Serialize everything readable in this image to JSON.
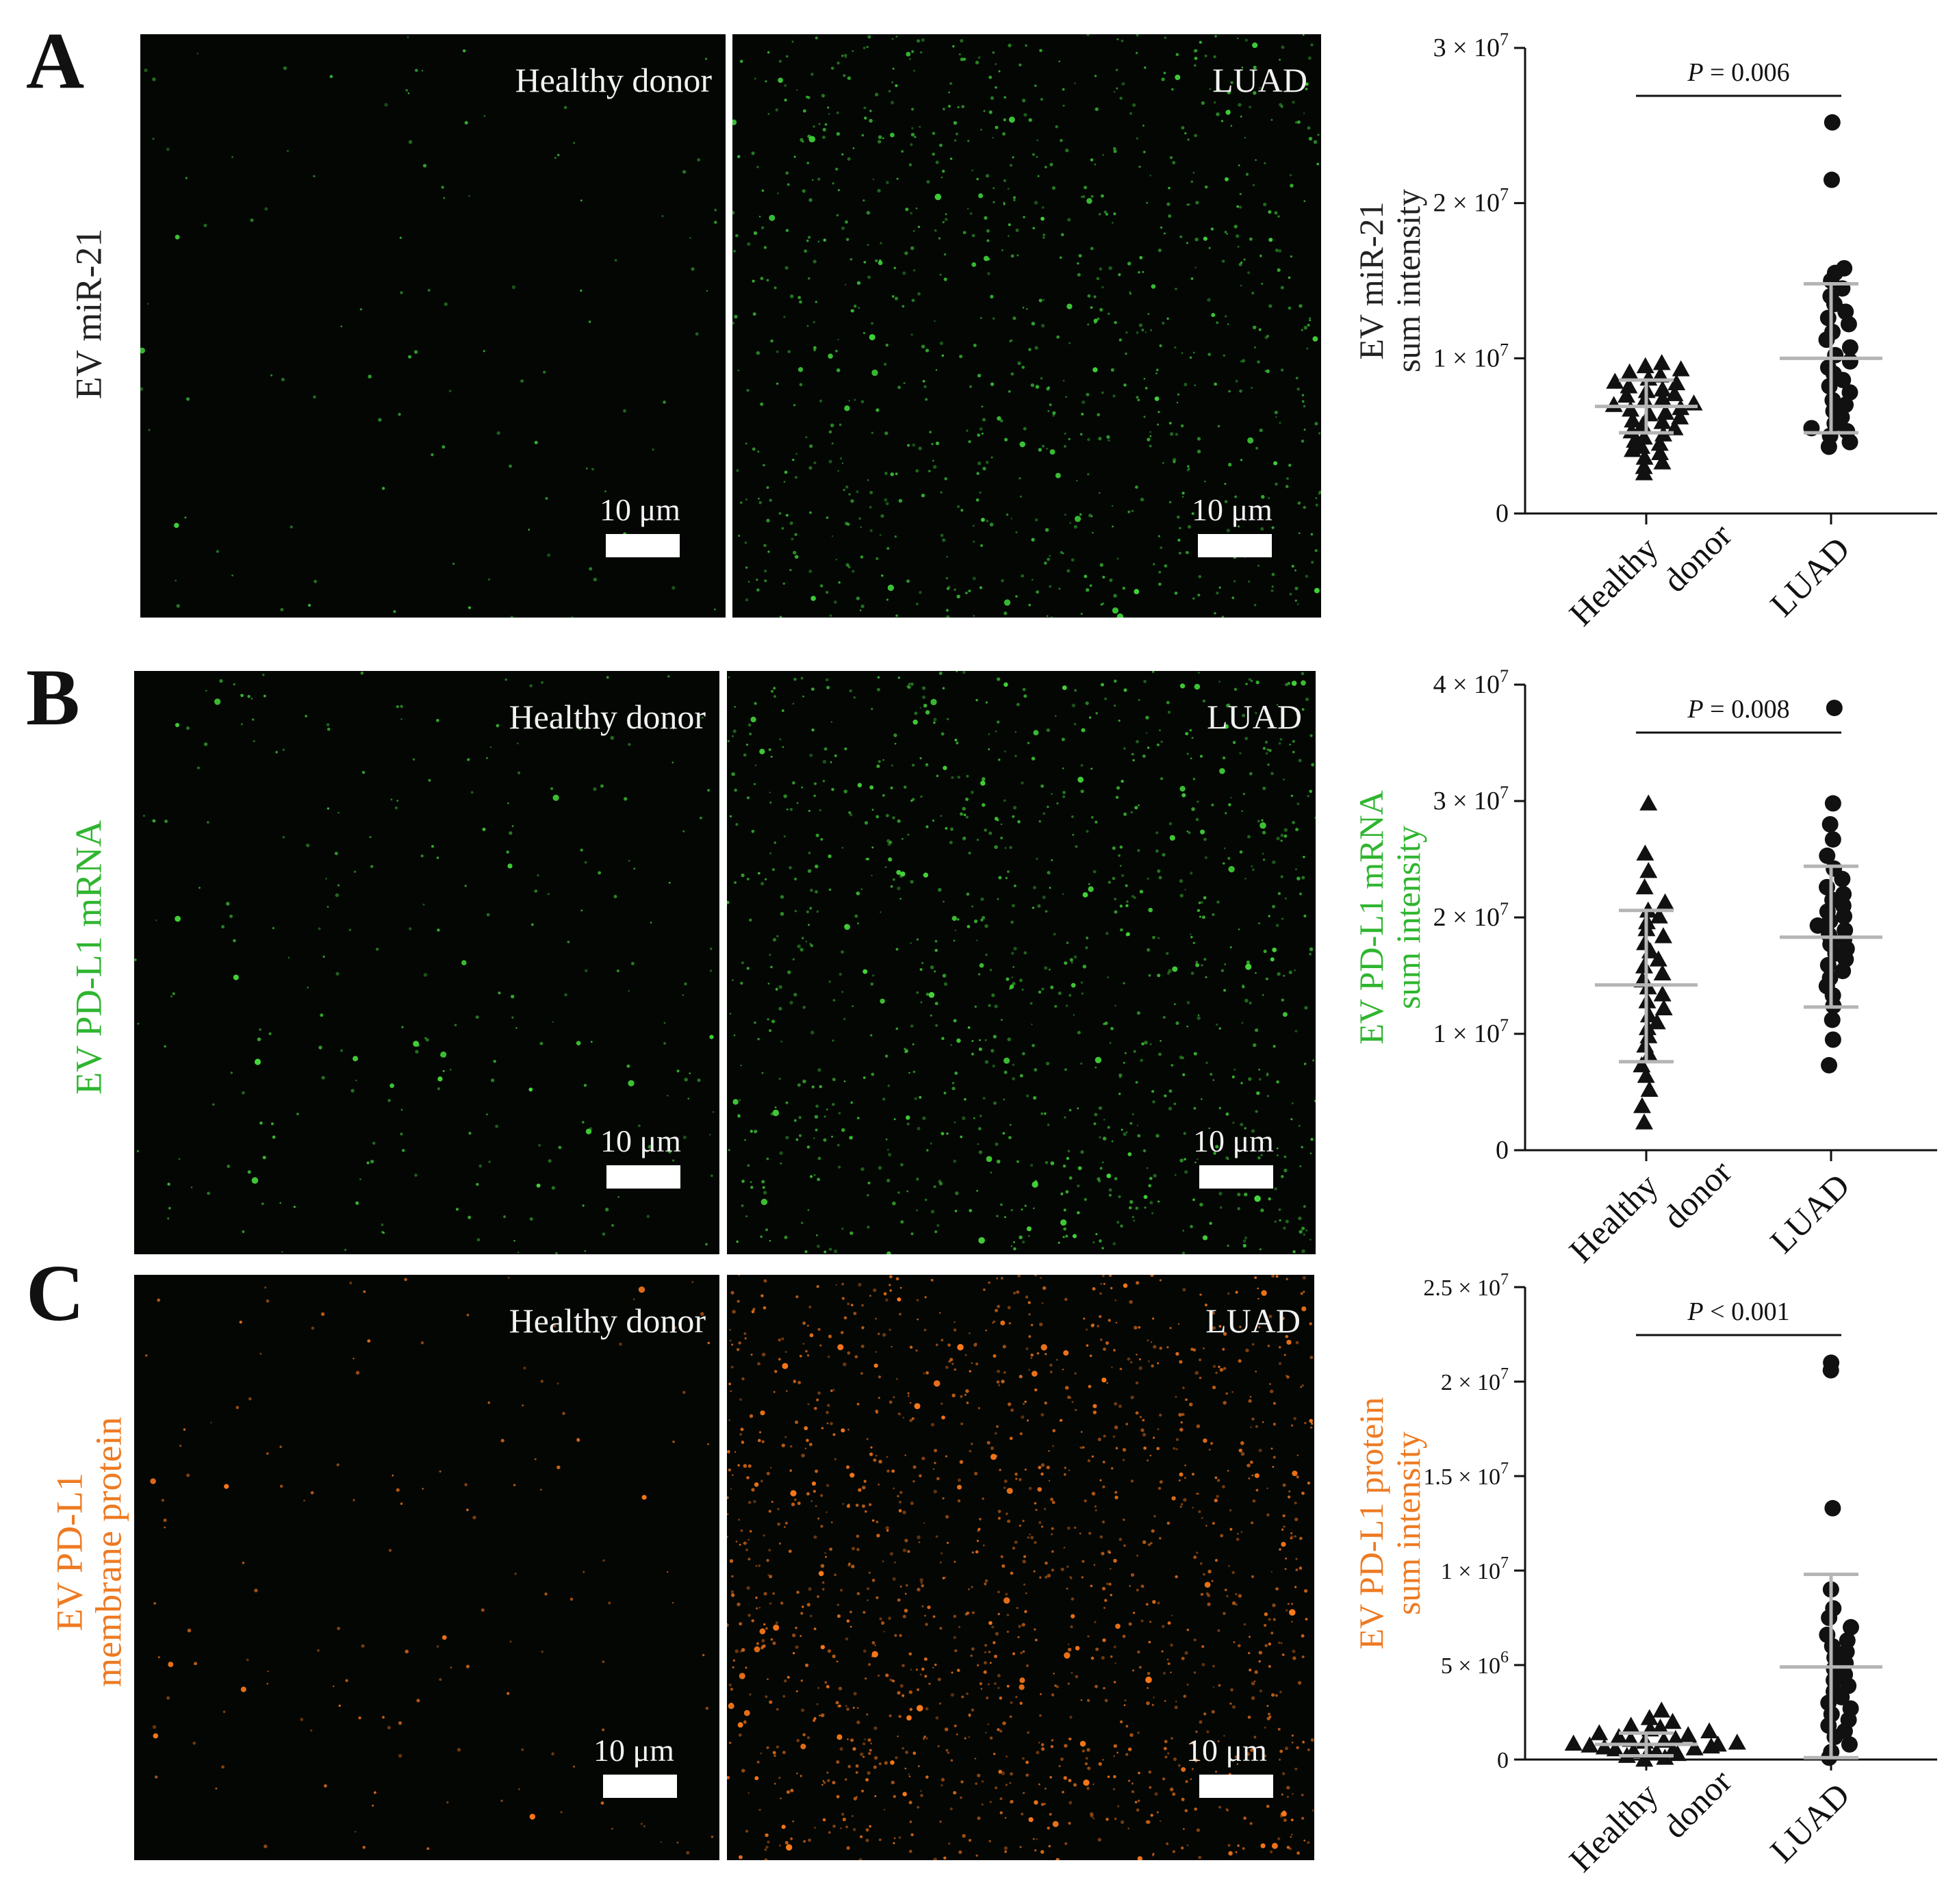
{
  "panels": [
    {
      "letter": "A",
      "row_label": [
        "EV miR-21"
      ],
      "row_label_color": "#222222",
      "image_left_label": "Healthy donor",
      "image_right_label": "LUAD",
      "scale_label": "10 μm",
      "dot_color": "#3fd13a",
      "dot_density_left": 110,
      "dot_density_right": 950,
      "ylabel_color": "#222222"
    },
    {
      "letter": "B",
      "row_label": [
        "EV PD-L1 mRNA"
      ],
      "row_label_color": "#2fb52f",
      "image_left_label": "Healthy donor",
      "image_right_label": "LUAD",
      "scale_label": "10 μm",
      "dot_color": "#44d639",
      "dot_density_left": 260,
      "dot_density_right": 1050,
      "ylabel_color": "#2fb52f"
    },
    {
      "letter": "C",
      "row_label": [
        "EV PD-L1",
        "membrane protein"
      ],
      "row_label_color": "#ee7a22",
      "image_left_label": "Healthy donor",
      "image_right_label": "LUAD",
      "scale_label": "10 μm",
      "dot_color": "#ff7a1a",
      "dot_density_left": 150,
      "dot_density_right": 1500,
      "ylabel_color": "#ee7a22"
    }
  ],
  "chart_data": [
    {
      "type": "scatter",
      "ylabel": [
        "EV miR-21",
        "sum intensity"
      ],
      "categories": [
        "Healthy donor",
        "LUAD"
      ],
      "ylim": [
        0,
        30000000
      ],
      "yticks": [
        0,
        10000000,
        20000000,
        30000000
      ],
      "ytick_labels": [
        "0",
        "1 × 10^7",
        "2 × 10^7",
        "3 × 10^7"
      ],
      "pvalue": "P = 0.006",
      "series": [
        {
          "marker": "triangle",
          "mean": 6900000,
          "sd_low": 5200000,
          "sd_high": 8600000,
          "values": [
            2600000,
            3000000,
            3300000,
            3600000,
            3900000,
            4100000,
            4300000,
            4500000,
            4700000,
            4900000,
            5100000,
            5300000,
            5500000,
            5700000,
            5900000,
            6000000,
            6200000,
            6400000,
            6500000,
            6700000,
            6800000,
            7000000,
            7100000,
            7300000,
            7400000,
            7600000,
            7700000,
            7900000,
            8000000,
            8200000,
            8400000,
            8500000,
            8700000,
            8900000,
            9100000,
            9300000,
            9500000,
            9700000
          ]
        },
        {
          "marker": "circle",
          "mean": 10000000,
          "sd_low": 5200000,
          "sd_high": 14800000,
          "values": [
            4300000,
            4600000,
            5000000,
            5300000,
            5500000,
            5800000,
            6200000,
            6600000,
            7000000,
            7300000,
            7800000,
            8200000,
            8600000,
            9000000,
            9400000,
            9800000,
            10200000,
            10700000,
            11200000,
            11700000,
            12200000,
            12600000,
            13000000,
            13500000,
            14000000,
            14500000,
            15000000,
            15500000,
            15800000,
            21500000,
            25200000
          ]
        }
      ]
    },
    {
      "type": "scatter",
      "ylabel": [
        "EV PD-L1 mRNA",
        "sum intensity"
      ],
      "categories": [
        "Healthy donor",
        "LUAD"
      ],
      "ylim": [
        0,
        40000000
      ],
      "yticks": [
        0,
        10000000,
        20000000,
        30000000,
        40000000
      ],
      "ytick_labels": [
        "0",
        "1 × 10^7",
        "2 × 10^7",
        "3 × 10^7",
        "4 × 10^7"
      ],
      "pvalue": "P = 0.008",
      "series": [
        {
          "marker": "triangle",
          "mean": 14200000,
          "sd_low": 7600000,
          "sd_high": 20600000,
          "values": [
            2400000,
            3800000,
            5200000,
            6400000,
            7300000,
            8200000,
            9000000,
            9800000,
            10500000,
            11000000,
            11600000,
            12200000,
            12800000,
            13400000,
            14000000,
            14600000,
            15200000,
            15800000,
            16400000,
            17100000,
            17800000,
            18400000,
            19000000,
            19600000,
            20100000,
            20600000,
            21300000,
            22600000,
            24000000,
            25500000,
            29800000
          ]
        },
        {
          "marker": "circle",
          "mean": 18300000,
          "sd_low": 12300000,
          "sd_high": 24400000,
          "values": [
            7300000,
            9500000,
            11200000,
            12400000,
            13300000,
            14100000,
            14800000,
            15400000,
            15900000,
            16400000,
            16900000,
            17300000,
            17700000,
            18100000,
            18500000,
            18900000,
            19300000,
            19700000,
            20100000,
            20500000,
            21000000,
            21500000,
            22000000,
            22600000,
            23300000,
            24200000,
            25300000,
            26700000,
            28000000,
            29800000,
            38000000
          ]
        }
      ]
    },
    {
      "type": "scatter",
      "ylabel": [
        "EV PD-L1 protein",
        "sum intensity"
      ],
      "categories": [
        "Healthy donor",
        "LUAD"
      ],
      "ylim": [
        0,
        25000000
      ],
      "yticks": [
        0,
        5000000,
        10000000,
        15000000,
        20000000,
        25000000
      ],
      "ytick_labels": [
        "0",
        "5 × 10^6",
        "1 × 10^7",
        "1.5 × 10^7",
        "2 × 10^7",
        "2.5 × 10^7"
      ],
      "pvalue": "P < 0.001",
      "series": [
        {
          "marker": "triangle",
          "mean": 800000,
          "sd_low": 200000,
          "sd_high": 1400000,
          "values": [
            0,
            100000,
            200000,
            300000,
            350000,
            400000,
            450000,
            500000,
            550000,
            600000,
            650000,
            700000,
            750000,
            800000,
            850000,
            900000,
            950000,
            1000000,
            1050000,
            1100000,
            1200000,
            1300000,
            1400000,
            1500000,
            1600000,
            1700000,
            1800000,
            2000000,
            2200000,
            2600000
          ]
        },
        {
          "marker": "circle",
          "mean": 4900000,
          "sd_low": 100000,
          "sd_high": 9800000,
          "values": [
            100000,
            400000,
            800000,
            1200000,
            1500000,
            1800000,
            2100000,
            2400000,
            2700000,
            3000000,
            3300000,
            3600000,
            3900000,
            4200000,
            4500000,
            4800000,
            5100000,
            5400000,
            5700000,
            6000000,
            6300000,
            6600000,
            7000000,
            7500000,
            8000000,
            9000000,
            13300000,
            20600000,
            21000000
          ]
        }
      ]
    }
  ]
}
